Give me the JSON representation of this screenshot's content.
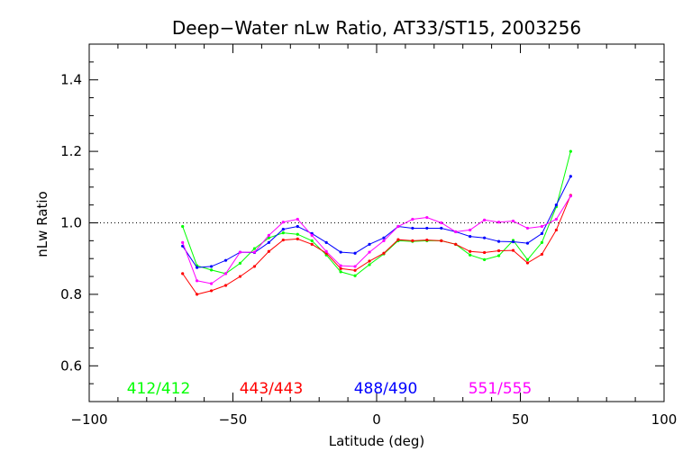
{
  "chart_data": {
    "type": "line",
    "title": "Deep−Water nLw Ratio, AT33/ST15, 2003256",
    "xlabel": "Latitude (deg)",
    "ylabel": "nLw Ratio",
    "xlim": [
      -100,
      100
    ],
    "ylim": [
      0.5,
      1.5
    ],
    "x_ticks": [
      -100,
      -50,
      0,
      50,
      100
    ],
    "x_tick_labels": [
      "−100",
      "−50",
      "0",
      "50",
      "100"
    ],
    "y_ticks": [
      0.6,
      0.8,
      1.0,
      1.2,
      1.4
    ],
    "y_tick_labels": [
      "0.6",
      "0.8",
      "1.0",
      "1.2",
      "1.4"
    ],
    "reference_line": 1.0,
    "grid": false,
    "legend_position": "bottom",
    "x": [
      -67.5,
      -62.5,
      -57.5,
      -52.5,
      -47.5,
      -42.5,
      -37.5,
      -32.5,
      -27.5,
      -22.5,
      -17.5,
      -12.5,
      -7.5,
      -2.5,
      2.5,
      7.5,
      12.5,
      17.5,
      22.5,
      27.5,
      32.5,
      37.5,
      42.5,
      47.5,
      52.5,
      57.5,
      62.5,
      67.5
    ],
    "series": [
      {
        "name": "412/412",
        "color": "#00ff00",
        "values": [
          0.99,
          0.88,
          0.868,
          0.858,
          0.887,
          0.928,
          0.958,
          0.972,
          0.968,
          0.95,
          0.91,
          0.863,
          0.852,
          0.883,
          0.913,
          0.95,
          0.948,
          0.95,
          0.95,
          0.94,
          0.91,
          0.897,
          0.908,
          0.951,
          0.897,
          0.945,
          1.045,
          1.2
        ]
      },
      {
        "name": "443/443",
        "color": "#ff0000",
        "values": [
          0.858,
          0.8,
          0.81,
          0.825,
          0.85,
          0.878,
          0.92,
          0.952,
          0.955,
          0.94,
          0.915,
          0.872,
          0.867,
          0.893,
          0.915,
          0.953,
          0.95,
          0.952,
          0.95,
          0.94,
          0.92,
          0.917,
          0.922,
          0.923,
          0.888,
          0.912,
          0.98,
          1.077
        ]
      },
      {
        "name": "488/490",
        "color": "#0000ff",
        "values": [
          0.935,
          0.875,
          0.878,
          0.895,
          0.918,
          0.917,
          0.945,
          0.982,
          0.99,
          0.97,
          0.945,
          0.918,
          0.915,
          0.94,
          0.958,
          0.99,
          0.985,
          0.985,
          0.985,
          0.975,
          0.962,
          0.958,
          0.948,
          0.947,
          0.943,
          0.97,
          1.05,
          1.13
        ]
      },
      {
        "name": "551/555",
        "color": "#ff00ff",
        "values": [
          0.945,
          0.838,
          0.83,
          0.858,
          0.918,
          0.918,
          0.965,
          1.002,
          1.01,
          0.965,
          0.92,
          0.88,
          0.878,
          0.918,
          0.95,
          0.99,
          1.01,
          1.015,
          1.0,
          0.975,
          0.98,
          1.008,
          1.002,
          1.005,
          0.985,
          0.99,
          1.01,
          1.075
        ]
      }
    ]
  }
}
